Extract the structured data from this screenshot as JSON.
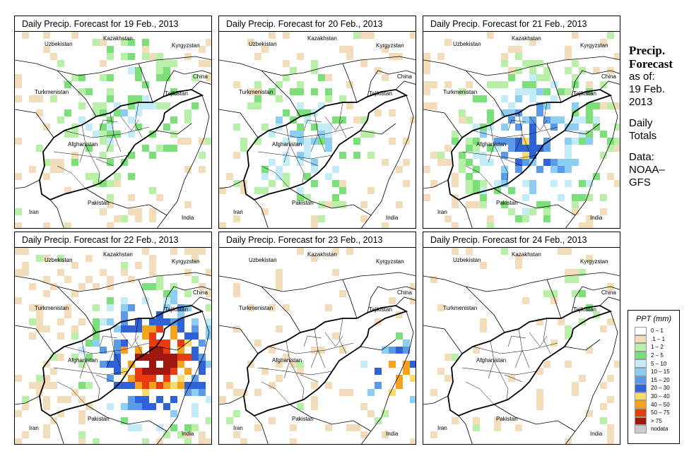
{
  "panels": [
    {
      "title_prefix": "Daily Precip. Forecast for",
      "date": "19 Feb., 2013",
      "seed": 11,
      "density": 0.3,
      "wet_x": 0.55,
      "wet_y": 0.4,
      "wet_r": 0.55,
      "intensity": 0.9
    },
    {
      "title_prefix": "Daily Precip. Forecast for",
      "date": "20 Feb., 2013",
      "seed": 23,
      "density": 0.32,
      "wet_x": 0.4,
      "wet_y": 0.55,
      "wet_r": 0.45,
      "intensity": 1.2
    },
    {
      "title_prefix": "Daily Precip. Forecast for",
      "date": "21 Feb., 2013",
      "seed": 37,
      "density": 0.45,
      "wet_x": 0.55,
      "wet_y": 0.55,
      "wet_r": 0.5,
      "intensity": 1.8
    },
    {
      "title_prefix": "Daily Precip. Forecast for",
      "date": "22 Feb., 2013",
      "seed": 41,
      "density": 0.6,
      "wet_x": 0.7,
      "wet_y": 0.55,
      "wet_r": 0.45,
      "intensity": 3.2
    },
    {
      "title_prefix": "Daily Precip. Forecast for",
      "date": "23 Feb., 2013",
      "seed": 53,
      "density": 0.25,
      "wet_x": 0.88,
      "wet_y": 0.62,
      "wet_r": 0.25,
      "intensity": 2.6
    },
    {
      "title_prefix": "Daily Precip. Forecast for",
      "date": "24 Feb., 2013",
      "seed": 67,
      "density": 0.22,
      "wet_x": 0.8,
      "wet_y": 0.25,
      "wet_r": 0.3,
      "intensity": 0.5
    }
  ],
  "map_labels": {
    "kazakhstan": "Kazakhstan",
    "uzbekistan": "Uzbekistan",
    "kyrgyzstan": "Kyrgyzstan",
    "china": "China",
    "turkmenistan": "Turkmenistan",
    "tajikistan": "Tajikistan",
    "afghanistan": "Afghanistan",
    "pakistan": "Pakistan",
    "iran": "Iran",
    "india": "India"
  },
  "sidebar": {
    "title_line1": "Precip.",
    "title_line2": "Forecast",
    "asof": "as of:",
    "date_line1": "19 Feb.",
    "date_line2": "2013",
    "daily": "Daily",
    "totals": "Totals",
    "data": "Data:",
    "source1": "NOAA–",
    "source2": "GFS"
  },
  "legend": {
    "title": "PPT (mm)",
    "items": [
      {
        "label": "0 – 1",
        "color": "#ffffff"
      },
      {
        "label": ".1 – 1",
        "color": "#f2dcb9"
      },
      {
        "label": "1 – 2",
        "color": "#b9f0a8"
      },
      {
        "label": "2 – 5",
        "color": "#7be07a"
      },
      {
        "label": "5 – 10",
        "color": "#c4ecf8"
      },
      {
        "label": "10 – 15",
        "color": "#8ccdf2"
      },
      {
        "label": "15 – 20",
        "color": "#5b9ae8"
      },
      {
        "label": "20 – 30",
        "color": "#2f62d6"
      },
      {
        "label": "30 – 40",
        "color": "#f7dc6a"
      },
      {
        "label": "40 – 50",
        "color": "#f5a21c"
      },
      {
        "label": "50 – 75",
        "color": "#ea3b10"
      },
      {
        "label": "> 75",
        "color": "#a0180d"
      },
      {
        "label": "nodata",
        "color": "#cccccc"
      }
    ]
  }
}
